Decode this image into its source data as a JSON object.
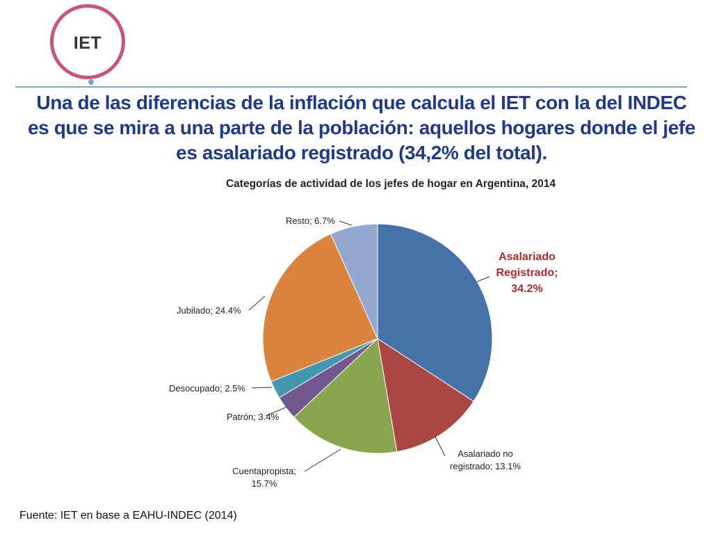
{
  "logo": {
    "text": "IET"
  },
  "headline": "Una de las diferencias de la inflación que calcula el IET con la del INDEC es que se mira a una parte de la población: aquellos hogares donde el jefe es asalariado registrado (34,2% del total).",
  "source": "Fuente: IET en base a EAHU-INDEC (2014)",
  "chart_data": {
    "type": "pie",
    "title": "Categorías de actividad de los jefes de hogar en Argentina, 2014",
    "slices": [
      {
        "name": "Asalariado Registrado",
        "value": 34.2,
        "color": "#4572a7",
        "label_lines": [
          "Asalariado",
          "Registrado;",
          "34.2%"
        ]
      },
      {
        "name": "Asalariado no registrado",
        "value": 13.1,
        "color": "#aa4643",
        "label_lines": [
          "Asalariado no",
          "registrado; 13.1%"
        ]
      },
      {
        "name": "Cuentapropista",
        "value": 15.7,
        "color": "#89a54e",
        "label_lines": [
          "Cuentapropista;",
          "15.7%"
        ]
      },
      {
        "name": "Patrón",
        "value": 3.4,
        "color": "#71588f",
        "label_lines": [
          "Patrón; 3.4%"
        ]
      },
      {
        "name": "Desocupado",
        "value": 2.5,
        "color": "#4198af",
        "label_lines": [
          "Desocupado; 2.5%"
        ]
      },
      {
        "name": "Jubilado",
        "value": 24.4,
        "color": "#db843d",
        "label_lines": [
          "Jubilado; 24.4%"
        ]
      },
      {
        "name": "Resto",
        "value": 6.7,
        "color": "#93a9cf",
        "label_lines": [
          "Resto; 6.7%"
        ]
      }
    ]
  }
}
